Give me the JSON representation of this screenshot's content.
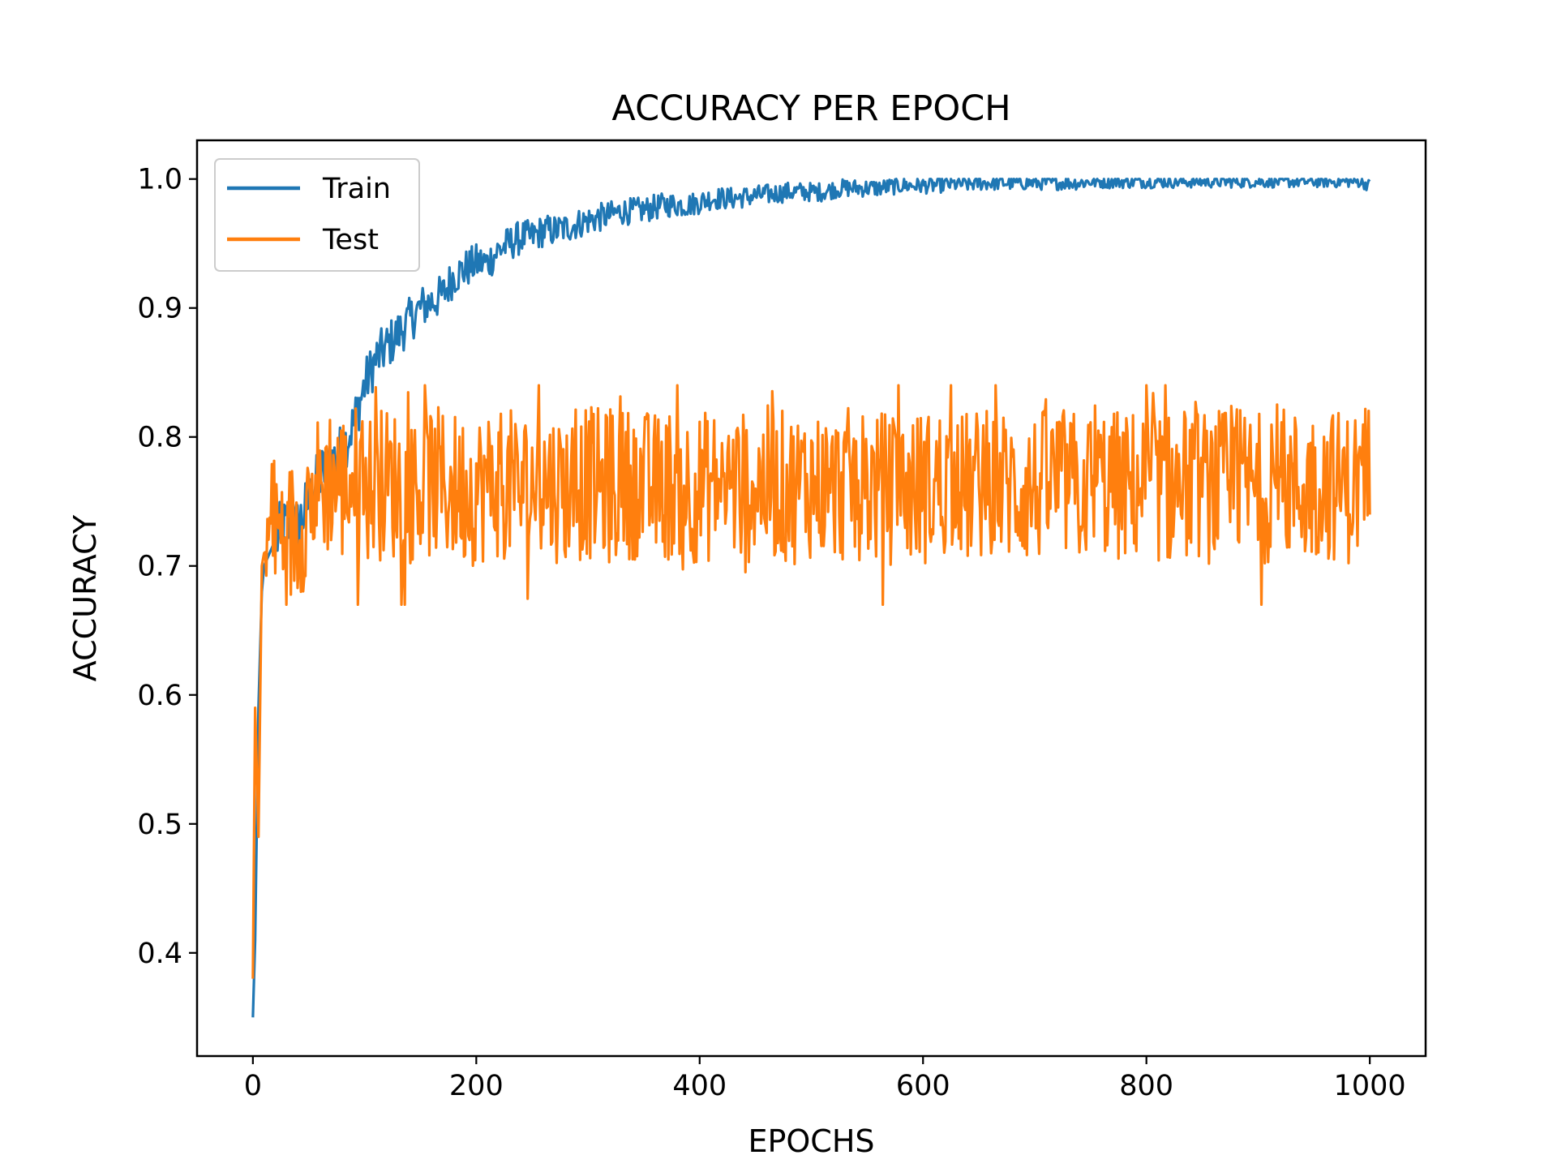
{
  "chart_data": {
    "type": "line",
    "title": "ACCURACY PER EPOCH",
    "xlabel": "EPOCHS",
    "ylabel": "ACCURACY",
    "xlim": [
      -50,
      1050
    ],
    "ylim": [
      0.32,
      1.03
    ],
    "xticks": [
      0,
      200,
      400,
      600,
      800,
      1000
    ],
    "xtick_labels": [
      "0",
      "200",
      "400",
      "600",
      "800",
      "1000"
    ],
    "yticks": [
      0.4,
      0.5,
      0.6,
      0.7,
      0.8,
      0.9,
      1.0
    ],
    "ytick_labels": [
      "0.4",
      "0.5",
      "0.6",
      "0.7",
      "0.8",
      "0.9",
      "1.0"
    ],
    "grid": false,
    "legend_position": "top-left",
    "series": [
      {
        "name": "Train",
        "color": "#1f77b4",
        "x": [
          0,
          2,
          5,
          8,
          10,
          15,
          20,
          30,
          40,
          50,
          60,
          70,
          80,
          90,
          100,
          110,
          120,
          130,
          140,
          150,
          160,
          170,
          180,
          190,
          200,
          210,
          220,
          230,
          240,
          250,
          260,
          270,
          280,
          290,
          300,
          310,
          320,
          330,
          340,
          350,
          360,
          370,
          380,
          390,
          400,
          410,
          420,
          430,
          440,
          450,
          460,
          470,
          480,
          490,
          500,
          510,
          520,
          530,
          540,
          550,
          560,
          570,
          580,
          590,
          600,
          610,
          620,
          630,
          640,
          650,
          660,
          670,
          680,
          690,
          700,
          710,
          720,
          730,
          740,
          750,
          760,
          770,
          780,
          790,
          800,
          810,
          820,
          830,
          840,
          850,
          860,
          870,
          880,
          890,
          900,
          910,
          920,
          930,
          940,
          950,
          960,
          970,
          980,
          990,
          1000
        ],
        "y": [
          0.35,
          0.41,
          0.59,
          0.68,
          0.7,
          0.71,
          0.72,
          0.73,
          0.73,
          0.75,
          0.77,
          0.78,
          0.79,
          0.81,
          0.84,
          0.86,
          0.87,
          0.88,
          0.89,
          0.9,
          0.905,
          0.91,
          0.925,
          0.93,
          0.935,
          0.935,
          0.945,
          0.95,
          0.955,
          0.955,
          0.96,
          0.96,
          0.962,
          0.965,
          0.968,
          0.97,
          0.972,
          0.975,
          0.975,
          0.976,
          0.978,
          0.98,
          0.98,
          0.98,
          0.982,
          0.985,
          0.985,
          0.985,
          0.986,
          0.987,
          0.988,
          0.989,
          0.99,
          0.99,
          0.99,
          0.99,
          0.992,
          0.993,
          0.993,
          0.993,
          0.993,
          0.994,
          0.995,
          0.995,
          0.995,
          0.995,
          0.996,
          0.996,
          0.996,
          0.997,
          0.997,
          0.997,
          0.997,
          0.997,
          0.997,
          0.997,
          0.997,
          0.997,
          0.997,
          0.998,
          0.998,
          0.998,
          0.998,
          0.998,
          0.998,
          0.998,
          0.998,
          0.998,
          0.998,
          0.998,
          0.998,
          0.998,
          0.998,
          0.998,
          0.998,
          0.998,
          0.998,
          0.998,
          0.998,
          0.998,
          0.998,
          0.998,
          0.998,
          0.998,
          0.995
        ]
      },
      {
        "name": "Test",
        "color": "#ff7f0e",
        "x": [
          0,
          2,
          5,
          8,
          10,
          15,
          20,
          30,
          40,
          50,
          60,
          70,
          80,
          90,
          100,
          120,
          140,
          160,
          180,
          200,
          220,
          240,
          260,
          280,
          300,
          320,
          340,
          360,
          380,
          400,
          420,
          440,
          460,
          480,
          500,
          520,
          540,
          560,
          580,
          600,
          620,
          640,
          660,
          680,
          700,
          720,
          740,
          760,
          780,
          800,
          820,
          840,
          860,
          880,
          900,
          920,
          940,
          960,
          980,
          1000
        ],
        "y": [
          0.38,
          0.59,
          0.49,
          0.7,
          0.71,
          0.72,
          0.73,
          0.72,
          0.73,
          0.75,
          0.76,
          0.77,
          0.76,
          0.77,
          0.76,
          0.765,
          0.76,
          0.765,
          0.76,
          0.76,
          0.765,
          0.76,
          0.765,
          0.76,
          0.765,
          0.76,
          0.765,
          0.76,
          0.765,
          0.76,
          0.765,
          0.76,
          0.765,
          0.76,
          0.765,
          0.76,
          0.765,
          0.76,
          0.76,
          0.76,
          0.765,
          0.76,
          0.765,
          0.76,
          0.76,
          0.765,
          0.76,
          0.765,
          0.76,
          0.765,
          0.76,
          0.765,
          0.76,
          0.765,
          0.76,
          0.765,
          0.76,
          0.765,
          0.76,
          0.77
        ],
        "noise_band": [
          0.67,
          0.84
        ]
      }
    ]
  }
}
